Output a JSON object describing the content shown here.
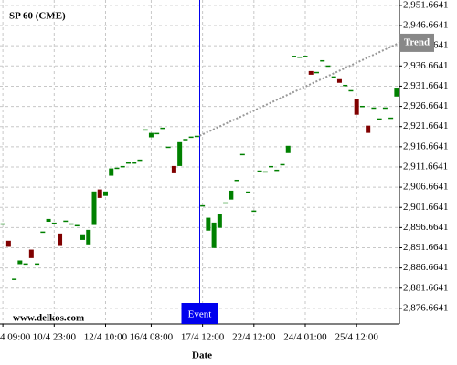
{
  "chart_data": {
    "type": "candlestick",
    "title": "SP 60 (CME)",
    "x_label": "Date",
    "watermark": "www.delkos.com",
    "categories": [
      "4 09:00",
      null,
      null,
      null,
      null,
      null,
      null,
      null,
      null,
      "10/4 23:00",
      null,
      null,
      null,
      null,
      null,
      null,
      null,
      null,
      "12/4 10:00",
      null,
      null,
      null,
      null,
      null,
      null,
      null,
      "16/4 08:00",
      null,
      null,
      null,
      null,
      null,
      null,
      null,
      null,
      "17/4 12:00",
      null,
      null,
      null,
      null,
      null,
      null,
      null,
      null,
      "22/4 12:00",
      null,
      null,
      null,
      null,
      null,
      null,
      null,
      null,
      "24/4 01:00",
      null,
      null,
      null,
      null,
      null,
      null,
      null,
      null,
      "25/4 12:00",
      null,
      null,
      null,
      null,
      null,
      null,
      null
    ],
    "open": [
      2897.7,
      2893.4,
      2884.0,
      2887.6,
      2887.8,
      2891.2,
      2887.8,
      2895.7,
      2898.1,
      2897.9,
      2895.2,
      2898.4,
      2897.7,
      2897.3,
      2893.6,
      2892.5,
      2897.3,
      2906.1,
      2904.5,
      2909.5,
      2911.5,
      2911.9,
      2912.8,
      2912.8,
      2913.5,
      2921.0,
      2919.0,
      2920.1,
      2921.4,
      2916.7,
      2911.9,
      2911.9,
      2918.6,
      2919.2,
      2919.4,
      2902.2,
      2895.9,
      2891.6,
      2896.6,
      2902.9,
      2903.6,
      2908.5,
      2914.9,
      2905.6,
      2900.9,
      2910.8,
      2910.6,
      2911.9,
      2911.0,
      2912.4,
      2915.1,
      2939.2,
      2939.0,
      2939.2,
      2935.4,
      2935.2,
      2938.1,
      2936.8,
      2934.1,
      2933.4,
      2932.0,
      2930.7,
      2928.4,
      2926.8,
      2921.9,
      2926.4,
      2923.7,
      2926.4,
      2923.9,
      2929.1
    ],
    "close": [
      2897.7,
      2891.9,
      2884.0,
      2888.5,
      2887.8,
      2889.1,
      2887.8,
      2895.7,
      2898.8,
      2897.9,
      2892.1,
      2898.4,
      2897.7,
      2897.3,
      2895.0,
      2896.1,
      2905.6,
      2904.0,
      2905.6,
      2911.3,
      2911.5,
      2911.9,
      2912.8,
      2912.8,
      2913.5,
      2921.0,
      2920.1,
      2920.1,
      2921.4,
      2916.7,
      2910.1,
      2917.8,
      2918.6,
      2919.2,
      2919.4,
      2902.2,
      2899.1,
      2897.9,
      2900.0,
      2902.9,
      2905.8,
      2908.5,
      2914.9,
      2905.6,
      2900.9,
      2910.8,
      2910.6,
      2911.9,
      2911.0,
      2912.4,
      2916.9,
      2939.2,
      2939.0,
      2939.2,
      2934.5,
      2935.2,
      2938.1,
      2936.8,
      2934.1,
      2932.5,
      2932.0,
      2930.7,
      2924.6,
      2926.8,
      2920.1,
      2926.4,
      2923.7,
      2926.4,
      2923.9,
      2931.3
    ],
    "up_color": "#008000",
    "down_color": "#800000",
    "event": {
      "label": "Event",
      "at": "17/4 12:00",
      "color": "#0000ee"
    },
    "trend": {
      "name": "Trend",
      "values": [
        2919.4,
        2942.4
      ],
      "color": "#999999"
    },
    "ylim": [
      2872.8,
      2953.0
    ],
    "yticks": [
      {
        "value": 2876.6641,
        "label": "2,876.6641"
      },
      {
        "value": 2881.6641,
        "label": "2,881.6641"
      },
      {
        "value": 2886.6641,
        "label": "2,886.6641"
      },
      {
        "value": 2891.6641,
        "label": "2,891.6641"
      },
      {
        "value": 2896.6641,
        "label": "2,896.6641"
      },
      {
        "value": 2901.6641,
        "label": "2,901.6641"
      },
      {
        "value": 2906.6641,
        "label": "2,906.6641"
      },
      {
        "value": 2911.6641,
        "label": "2,911.6641"
      },
      {
        "value": 2916.6641,
        "label": "2,916.6641"
      },
      {
        "value": 2921.6641,
        "label": "2,921.6641"
      },
      {
        "value": 2926.6641,
        "label": "2,926.6641"
      },
      {
        "value": 2931.6641,
        "label": "2,931.6641"
      },
      {
        "value": 2936.6641,
        "label": "2,936.6641"
      },
      {
        "value": 2941.6641,
        "label": "2,941.6641"
      },
      {
        "value": 2946.6641,
        "label": "2,946.6641"
      },
      {
        "value": 2951.6641,
        "label": "2,951.6641"
      }
    ],
    "grid": true
  }
}
